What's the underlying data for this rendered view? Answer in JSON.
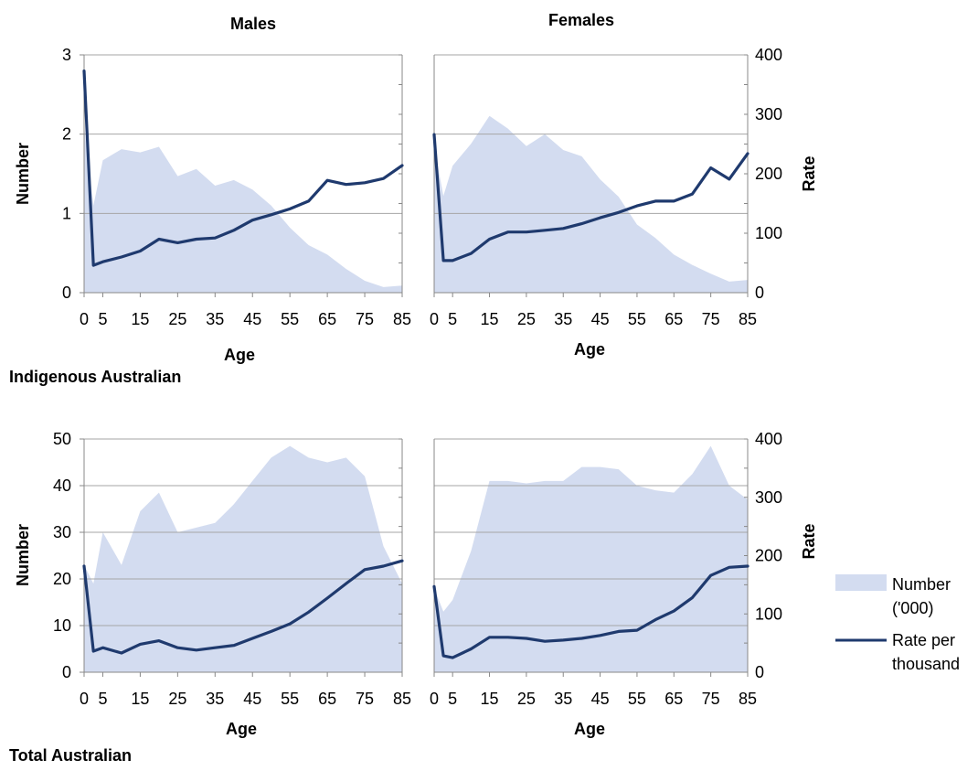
{
  "headers": {
    "males": "Males",
    "females": "Females"
  },
  "sections": {
    "indigenous": "Indigenous Australian",
    "total": "Total Australian"
  },
  "axis_titles": {
    "x": "Age",
    "left": "Number",
    "right": "Rate"
  },
  "legend": {
    "number_label_line1": "Number",
    "number_label_line2": "('000)",
    "rate_label_line1": "Rate per",
    "rate_label_line2": "thousand"
  },
  "colors": {
    "area": "#d3dcf0",
    "line": "#1f3a6e",
    "grid": "#a6a6a6",
    "axis": "#888888"
  },
  "chart_data": [
    {
      "panel": "indigenous-males",
      "type": "area+line",
      "title": "Males",
      "xlabel": "Age",
      "ylabel": "Number",
      "x": [
        0,
        2.5,
        5,
        10,
        15,
        20,
        25,
        30,
        35,
        40,
        45,
        50,
        55,
        60,
        65,
        70,
        75,
        80,
        85
      ],
      "xticks": [
        0,
        5,
        15,
        25,
        35,
        45,
        55,
        65,
        75,
        85
      ],
      "xlim": [
        0,
        85
      ],
      "left_ylim": [
        0,
        3
      ],
      "left_ticks": [
        0,
        1,
        2,
        3
      ],
      "right_ylim": [
        0,
        400
      ],
      "right_ticks": [],
      "area_values": [
        2.1,
        1.1,
        1.67,
        1.81,
        1.77,
        1.84,
        1.47,
        1.56,
        1.35,
        1.42,
        1.3,
        1.1,
        0.82,
        0.6,
        0.48,
        0.3,
        0.15,
        0.07,
        0.09
      ],
      "line_values": [
        373,
        46,
        52,
        60,
        70,
        90,
        84,
        90,
        92,
        105,
        122,
        131,
        141,
        154,
        189,
        182,
        185,
        192,
        214
      ]
    },
    {
      "panel": "indigenous-females",
      "type": "area+line",
      "title": "Females",
      "xlabel": "Age",
      "ylabel": "Rate",
      "x": [
        0,
        2.5,
        5,
        10,
        15,
        20,
        25,
        30,
        35,
        40,
        45,
        50,
        55,
        60,
        65,
        70,
        75,
        80,
        85
      ],
      "xticks": [
        0,
        5,
        15,
        25,
        35,
        45,
        55,
        65,
        75,
        85
      ],
      "xlim": [
        0,
        85
      ],
      "left_ylim": [
        0,
        3
      ],
      "left_ticks": [],
      "right_ylim": [
        0,
        400
      ],
      "right_ticks": [
        0,
        100,
        200,
        300,
        400
      ],
      "area_values": [
        1.85,
        1.22,
        1.6,
        1.88,
        2.23,
        2.07,
        1.85,
        2.0,
        1.8,
        1.72,
        1.43,
        1.21,
        0.86,
        0.69,
        0.48,
        0.35,
        0.24,
        0.14,
        0.16
      ],
      "line_values": [
        266,
        54,
        54,
        66,
        90,
        102,
        102,
        105,
        108,
        116,
        126,
        135,
        146,
        154,
        154,
        166,
        210,
        191,
        234
      ]
    },
    {
      "panel": "total-males",
      "type": "area+line",
      "xlabel": "Age",
      "ylabel": "Number",
      "x": [
        0,
        2.5,
        5,
        10,
        15,
        20,
        25,
        30,
        35,
        40,
        45,
        50,
        55,
        60,
        65,
        70,
        75,
        80,
        85
      ],
      "xticks": [
        0,
        5,
        15,
        25,
        35,
        45,
        55,
        65,
        75,
        85
      ],
      "xlim": [
        0,
        85
      ],
      "left_ylim": [
        0,
        50
      ],
      "left_ticks": [
        0,
        10,
        20,
        30,
        40,
        50
      ],
      "right_ylim": [
        0,
        400
      ],
      "right_ticks": [],
      "area_values": [
        23,
        19,
        30,
        23,
        34.5,
        38.5,
        30,
        31,
        32,
        36,
        41,
        46,
        48.5,
        46,
        45,
        46,
        42,
        27,
        19
      ],
      "line_values": [
        182,
        36,
        42,
        33,
        48,
        54,
        42,
        38,
        42,
        46,
        58,
        70,
        83,
        103,
        127,
        152,
        176,
        182,
        191
      ]
    },
    {
      "panel": "total-females",
      "type": "area+line",
      "xlabel": "Age",
      "ylabel": "Rate",
      "x": [
        0,
        2.5,
        5,
        10,
        15,
        20,
        25,
        30,
        35,
        40,
        45,
        50,
        55,
        60,
        65,
        70,
        75,
        80,
        85
      ],
      "xticks": [
        0,
        5,
        15,
        25,
        35,
        45,
        55,
        65,
        75,
        85
      ],
      "xlim": [
        0,
        85
      ],
      "left_ylim": [
        0,
        50
      ],
      "left_ticks": [],
      "right_ylim": [
        0,
        400
      ],
      "right_ticks": [
        0,
        100,
        200,
        300,
        400
      ],
      "area_values": [
        18,
        13,
        15.5,
        26,
        41,
        41,
        40.5,
        41,
        41,
        44,
        44,
        43.5,
        40,
        39,
        38.5,
        42.5,
        48.5,
        40,
        37
      ],
      "line_values": [
        147,
        28,
        25,
        40,
        60,
        60,
        58,
        53,
        55,
        58,
        63,
        70,
        72,
        90,
        105,
        128,
        166,
        180,
        182
      ]
    }
  ]
}
